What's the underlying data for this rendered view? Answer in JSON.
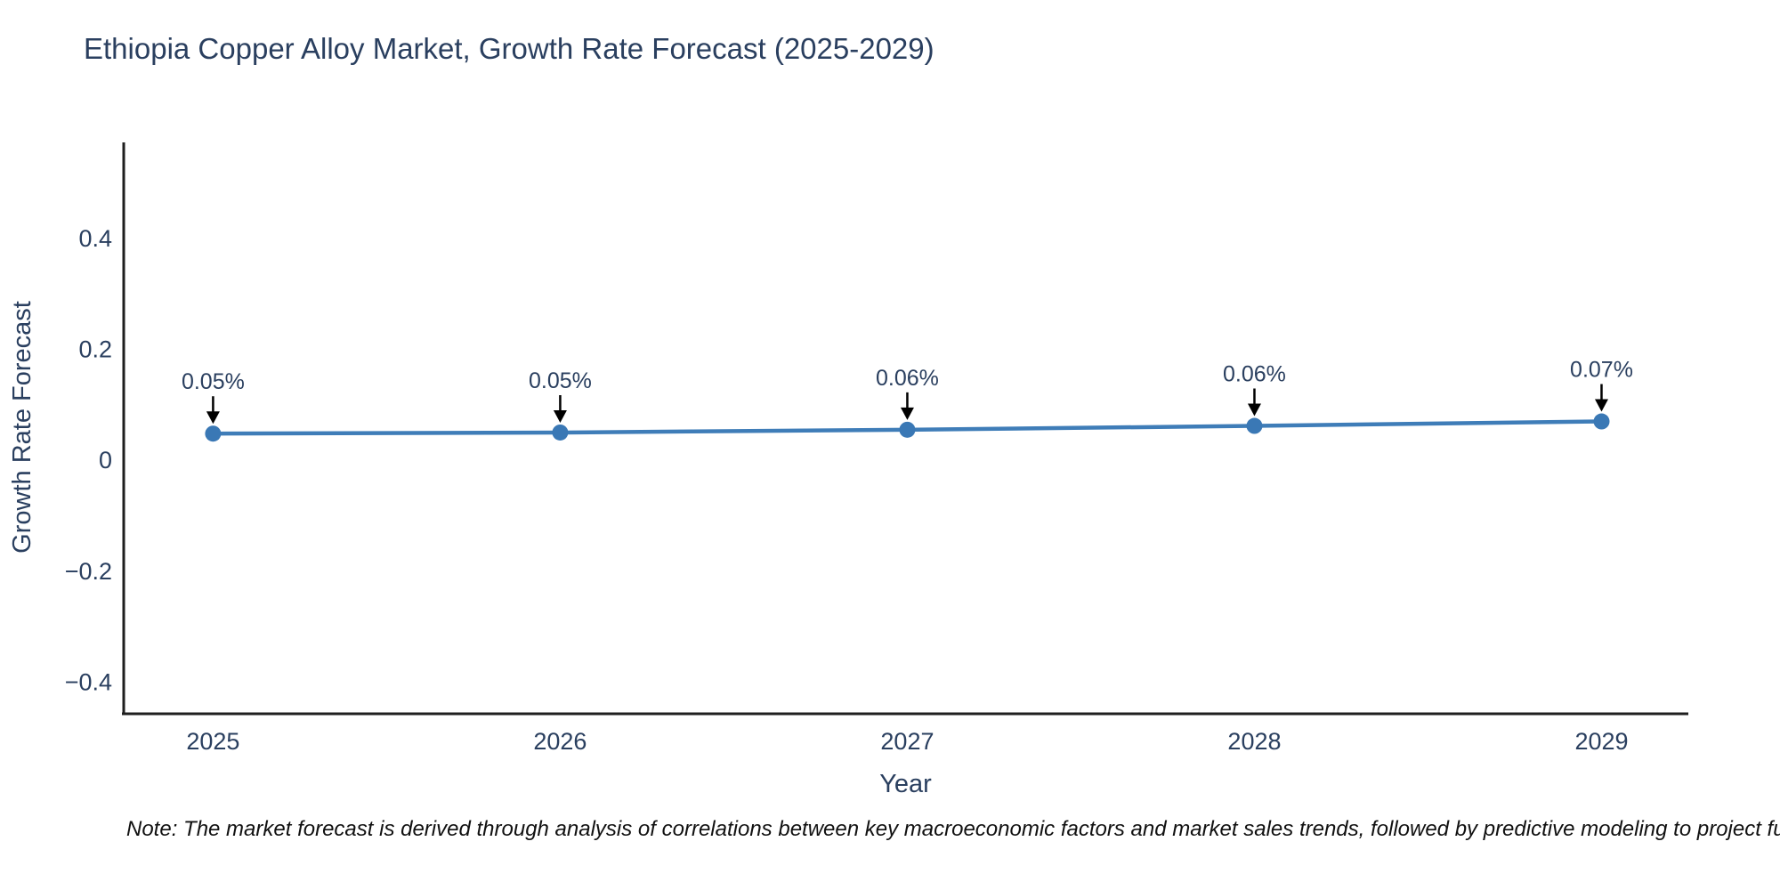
{
  "page": {
    "title": "Ethiopia Copper Alloy Market, Growth Rate Forecast (2025-2029)",
    "footnote": "Note: The market forecast is derived through analysis of correlations between key macroeconomic factors and market sales trends, followed by predictive modeling to project future sa"
  },
  "colors": {
    "text": "#2a3f5f",
    "line": "#3f7db8",
    "marker": "#3a78b5",
    "axis": "#1f1f1f",
    "arrow": "#000000",
    "background": "#ffffff"
  },
  "chart_data": {
    "type": "line",
    "title": "Ethiopia Copper Alloy Market, Growth Rate Forecast (2025-2029)",
    "xlabel": "Year",
    "ylabel": "Growth Rate Forecast",
    "x": [
      2025,
      2026,
      2027,
      2028,
      2029
    ],
    "x_tick_labels": [
      "2025",
      "2026",
      "2027",
      "2028",
      "2029"
    ],
    "values": [
      0.05,
      0.05,
      0.06,
      0.06,
      0.07
    ],
    "values_plot": [
      0.048,
      0.05,
      0.055,
      0.062,
      0.07
    ],
    "point_labels": [
      "0.05%",
      "0.05%",
      "0.06%",
      "0.06%",
      "0.07%"
    ],
    "y_ticks": [
      0.4,
      0.2,
      0,
      -0.2,
      -0.4
    ],
    "y_tick_labels": [
      "0.4",
      "0.2",
      "0",
      "−0.2",
      "−0.4"
    ],
    "ylim": [
      -0.457,
      0.573
    ],
    "xlim": [
      2024.74,
      2029.25
    ],
    "grid": false,
    "legend": "none",
    "note": "Note: The market forecast is derived through analysis of correlations between key macroeconomic factors and market sales trends, followed by predictive modeling to project future sa"
  }
}
